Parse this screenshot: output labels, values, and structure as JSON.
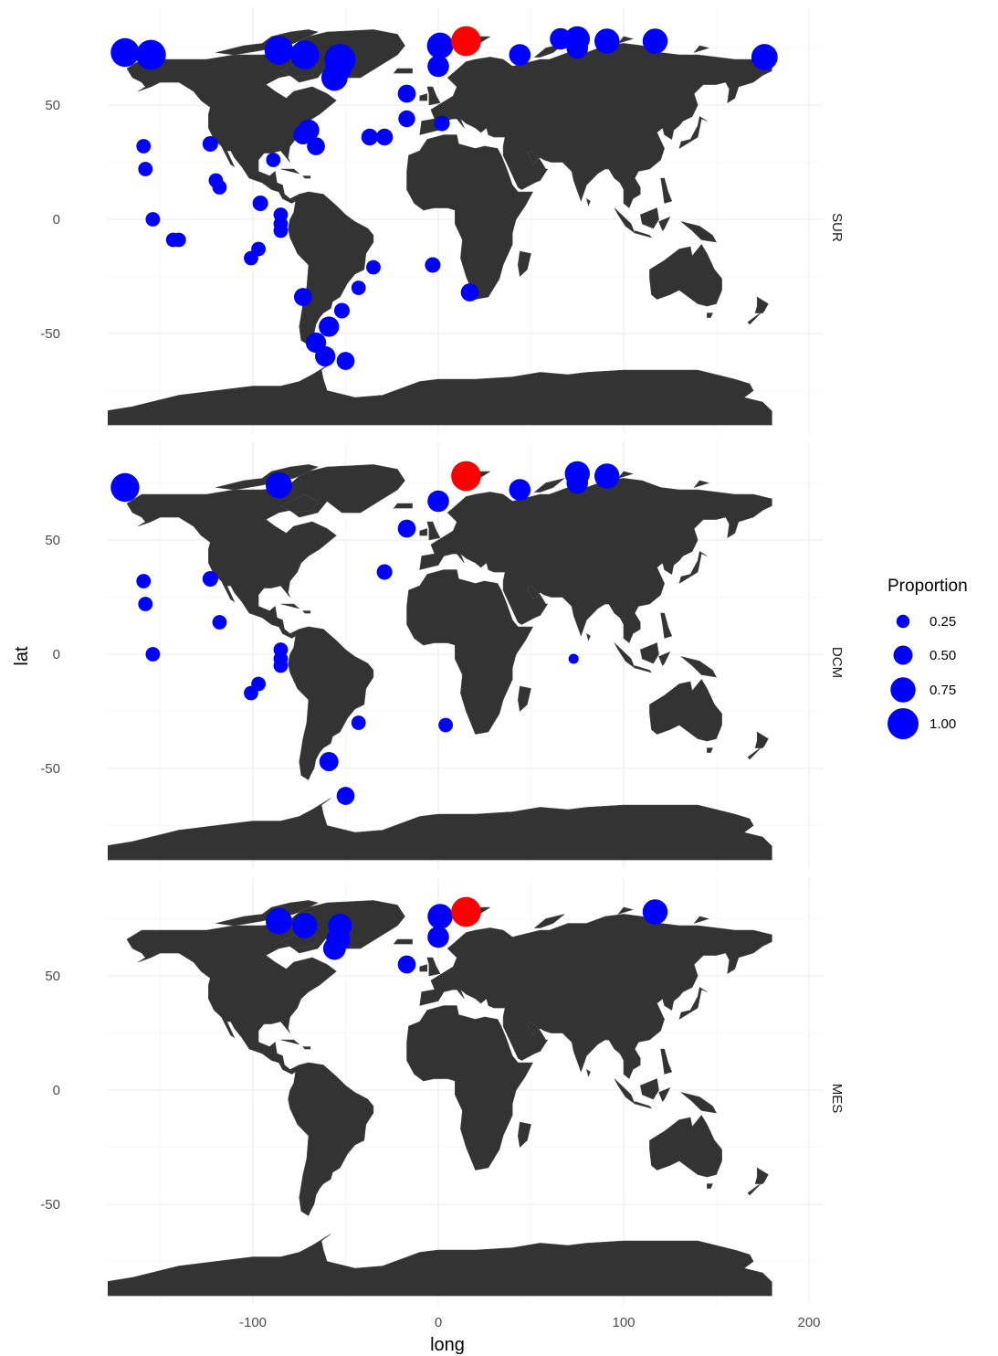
{
  "chart_data": {
    "type": "scatter",
    "xlabel": "long",
    "ylabel": "lat",
    "xlim": [
      -180,
      205
    ],
    "ylim": [
      -90,
      90
    ],
    "x_ticks": [
      -100,
      0,
      100,
      200
    ],
    "y_ticks": [
      50,
      0,
      -50
    ],
    "grid": true,
    "background": "world map (land polygons)",
    "legend": {
      "title": "Proportion",
      "placement": "right",
      "entries": [
        {
          "label": "0.25",
          "value": 0.25
        },
        {
          "label": "0.50",
          "value": 0.5
        },
        {
          "label": "0.75",
          "value": 0.75
        },
        {
          "label": "1.00",
          "value": 1.0
        }
      ]
    },
    "colors": {
      "points": "#0000ff",
      "highlight": "#ff0000",
      "land": "#333333",
      "grid": "#ebebeb"
    },
    "facets": [
      {
        "label": "SUR",
        "points": [
          {
            "x": -169,
            "y": 73,
            "p": 0.9
          },
          {
            "x": -155,
            "y": 72,
            "p": 0.95
          },
          {
            "x": -86,
            "y": 74,
            "p": 0.9
          },
          {
            "x": -72,
            "y": 72,
            "p": 0.9
          },
          {
            "x": -53,
            "y": 70,
            "p": 1.0
          },
          {
            "x": -54,
            "y": 66,
            "p": 0.8
          },
          {
            "x": -56,
            "y": 62,
            "p": 0.8
          },
          {
            "x": 1,
            "y": 76,
            "p": 0.8
          },
          {
            "x": 15,
            "y": 78,
            "p": 0.95,
            "highlight": true
          },
          {
            "x": 0,
            "y": 67,
            "p": 0.6
          },
          {
            "x": 44,
            "y": 72,
            "p": 0.6
          },
          {
            "x": 66,
            "y": 79,
            "p": 0.6
          },
          {
            "x": 75,
            "y": 79,
            "p": 0.75
          },
          {
            "x": 75,
            "y": 75,
            "p": 0.6
          },
          {
            "x": 91,
            "y": 78,
            "p": 0.75
          },
          {
            "x": 117,
            "y": 78,
            "p": 0.75
          },
          {
            "x": 176,
            "y": 71,
            "p": 0.8
          },
          {
            "x": -17,
            "y": 55,
            "p": 0.45
          },
          {
            "x": -17,
            "y": 44,
            "p": 0.4
          },
          {
            "x": 2,
            "y": 42,
            "p": 0.35
          },
          {
            "x": -37,
            "y": 36,
            "p": 0.4
          },
          {
            "x": -29,
            "y": 36,
            "p": 0.4
          },
          {
            "x": -70,
            "y": 39,
            "p": 0.6
          },
          {
            "x": -73,
            "y": 37,
            "p": 0.5
          },
          {
            "x": -66,
            "y": 32,
            "p": 0.45
          },
          {
            "x": -123,
            "y": 33,
            "p": 0.35
          },
          {
            "x": -159,
            "y": 32,
            "p": 0.3
          },
          {
            "x": -158,
            "y": 22,
            "p": 0.3
          },
          {
            "x": -89,
            "y": 26,
            "p": 0.3
          },
          {
            "x": -120,
            "y": 17,
            "p": 0.3
          },
          {
            "x": -118,
            "y": 14,
            "p": 0.3
          },
          {
            "x": -96,
            "y": 7,
            "p": 0.35
          },
          {
            "x": -85,
            "y": 2,
            "p": 0.3
          },
          {
            "x": -85,
            "y": -2,
            "p": 0.3
          },
          {
            "x": -85,
            "y": -5,
            "p": 0.3
          },
          {
            "x": -154,
            "y": 0,
            "p": 0.3
          },
          {
            "x": -143,
            "y": -9,
            "p": 0.3
          },
          {
            "x": -140,
            "y": -9,
            "p": 0.3
          },
          {
            "x": -97,
            "y": -13,
            "p": 0.3
          },
          {
            "x": -101,
            "y": -17,
            "p": 0.3
          },
          {
            "x": -35,
            "y": -21,
            "p": 0.3
          },
          {
            "x": -3,
            "y": -20,
            "p": 0.35
          },
          {
            "x": -43,
            "y": -30,
            "p": 0.3
          },
          {
            "x": -52,
            "y": -40,
            "p": 0.35
          },
          {
            "x": -73,
            "y": -34,
            "p": 0.45
          },
          {
            "x": 17,
            "y": -32,
            "p": 0.45
          },
          {
            "x": -59,
            "y": -47,
            "p": 0.55
          },
          {
            "x": -66,
            "y": -54,
            "p": 0.55
          },
          {
            "x": -61,
            "y": -60,
            "p": 0.55
          },
          {
            "x": -50,
            "y": -62,
            "p": 0.45
          }
        ]
      },
      {
        "label": "DCM",
        "points": [
          {
            "x": -169,
            "y": 73,
            "p": 0.9
          },
          {
            "x": -86,
            "y": 74,
            "p": 0.8
          },
          {
            "x": 15,
            "y": 78,
            "p": 0.95,
            "highlight": true
          },
          {
            "x": 0,
            "y": 67,
            "p": 0.6
          },
          {
            "x": 44,
            "y": 72,
            "p": 0.6
          },
          {
            "x": 75,
            "y": 79,
            "p": 0.75
          },
          {
            "x": 75,
            "y": 75,
            "p": 0.6
          },
          {
            "x": 91,
            "y": 78,
            "p": 0.75
          },
          {
            "x": -17,
            "y": 55,
            "p": 0.45
          },
          {
            "x": -29,
            "y": 36,
            "p": 0.35
          },
          {
            "x": -123,
            "y": 33,
            "p": 0.35
          },
          {
            "x": -159,
            "y": 32,
            "p": 0.3
          },
          {
            "x": -158,
            "y": 22,
            "p": 0.3
          },
          {
            "x": -118,
            "y": 14,
            "p": 0.3
          },
          {
            "x": -85,
            "y": 2,
            "p": 0.3
          },
          {
            "x": -85,
            "y": -2,
            "p": 0.3
          },
          {
            "x": -85,
            "y": -5,
            "p": 0.3
          },
          {
            "x": -154,
            "y": 0,
            "p": 0.3
          },
          {
            "x": 73,
            "y": -2,
            "p": 0.12
          },
          {
            "x": -97,
            "y": -13,
            "p": 0.3
          },
          {
            "x": -101,
            "y": -17,
            "p": 0.3
          },
          {
            "x": -43,
            "y": -30,
            "p": 0.3
          },
          {
            "x": 4,
            "y": -31,
            "p": 0.3
          },
          {
            "x": -59,
            "y": -47,
            "p": 0.5
          },
          {
            "x": -50,
            "y": -62,
            "p": 0.45
          }
        ]
      },
      {
        "label": "MES",
        "points": [
          {
            "x": -86,
            "y": 74,
            "p": 0.8
          },
          {
            "x": -72,
            "y": 72,
            "p": 0.75
          },
          {
            "x": -53,
            "y": 72,
            "p": 0.7
          },
          {
            "x": -54,
            "y": 66,
            "p": 0.7
          },
          {
            "x": -56,
            "y": 62,
            "p": 0.65
          },
          {
            "x": 1,
            "y": 76,
            "p": 0.75
          },
          {
            "x": 15,
            "y": 78,
            "p": 0.95,
            "highlight": true
          },
          {
            "x": 0,
            "y": 67,
            "p": 0.6
          },
          {
            "x": 117,
            "y": 78,
            "p": 0.75
          },
          {
            "x": -17,
            "y": 55,
            "p": 0.45
          }
        ]
      }
    ]
  }
}
